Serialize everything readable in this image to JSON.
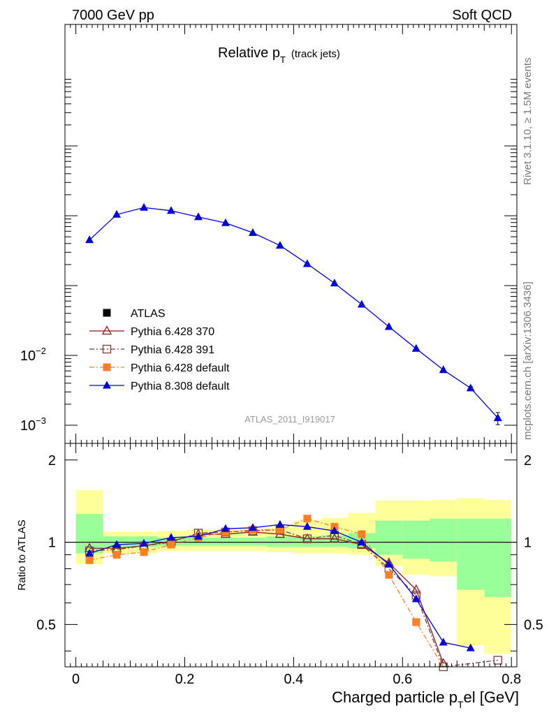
{
  "header": {
    "left": "7000 GeV pp",
    "right": "Soft QCD"
  },
  "side_labels": {
    "rivet": "Rivet 3.1.10, ≥ 1.5M events",
    "source": "mcplots.cern.ch [arXiv:1306.3436]"
  },
  "main": {
    "title_main": "Relative p",
    "title_sub": "T",
    "title_extra": "(track jets)",
    "analysis_id": "ATLAS_2011_I919017",
    "y_ticks": [
      {
        "value": 0.01,
        "label": "10",
        "exp": "−2"
      },
      {
        "value": 0.001,
        "label": "10",
        "exp": "−3"
      }
    ],
    "y_scale": "log"
  },
  "ratio": {
    "ylabel": "Ratio to ATLAS",
    "y_ticks": [
      {
        "value": 0.5,
        "label": "0.5"
      },
      {
        "value": 1,
        "label": "1"
      },
      {
        "value": 2,
        "label": "2"
      }
    ],
    "ylim": [
      0.35,
      2.3
    ],
    "y_scale": "log"
  },
  "x_axis": {
    "label_pre": "Charged particle p",
    "label_sub": "T",
    "label_post": "el [GeV]",
    "xlim": [
      -0.02,
      0.81
    ],
    "ticks": [
      {
        "value": 0,
        "label": "0"
      },
      {
        "value": 0.2,
        "label": "0.2"
      },
      {
        "value": 0.4,
        "label": "0.4"
      },
      {
        "value": 0.6,
        "label": "0.6"
      },
      {
        "value": 0.8,
        "label": "0.8"
      }
    ]
  },
  "legend": {
    "placement": "bottom-left",
    "entries": [
      {
        "label": "ATLAS",
        "color": "#000000",
        "marker": "square-filled",
        "line": "none"
      },
      {
        "label": "Pythia 6.428 370",
        "color": "#8b1a1a",
        "marker": "triangle-open",
        "line": "solid"
      },
      {
        "label": "Pythia 6.428 391",
        "color": "#7a3b3b",
        "marker": "square-open",
        "line": "dashdot"
      },
      {
        "label": "Pythia 6.428 default",
        "color": "#ff7f27",
        "marker": "square-filled",
        "line": "dashdot"
      },
      {
        "label": "Pythia 8.308 default",
        "color": "#0000dd",
        "marker": "triangle-filled",
        "line": "solid"
      }
    ]
  },
  "chart_data": {
    "type": "line",
    "x_bin_centers": [
      0.025,
      0.075,
      0.125,
      0.175,
      0.225,
      0.275,
      0.325,
      0.375,
      0.425,
      0.475,
      0.525,
      0.575,
      0.625,
      0.675,
      0.725,
      0.775
    ],
    "x_bin_edges": [
      0,
      0.05,
      0.1,
      0.15,
      0.2,
      0.25,
      0.3,
      0.35,
      0.4,
      0.45,
      0.5,
      0.55,
      0.6,
      0.65,
      0.7,
      0.75,
      0.8
    ],
    "main_series": [
      {
        "name": "Pythia 8.308 default",
        "values": [
          0.45,
          1.04,
          1.31,
          1.18,
          0.96,
          0.79,
          0.57,
          0.375,
          0.205,
          0.108,
          0.0537,
          0.0257,
          0.0125,
          0.0062,
          0.0034,
          0.00127
        ],
        "errors": [
          0,
          0,
          0,
          0,
          0,
          0,
          0,
          0,
          0,
          0,
          0,
          0,
          0,
          0,
          0.0002,
          0.00025
        ]
      }
    ],
    "ratio_bands": {
      "green": [
        [
          0.91,
          1.27
        ],
        [
          0.96,
          1.05
        ],
        [
          0.96,
          1.05
        ],
        [
          0.97,
          1.04
        ],
        [
          0.97,
          1.04
        ],
        [
          0.97,
          1.04
        ],
        [
          0.97,
          1.04
        ],
        [
          0.96,
          1.05
        ],
        [
          0.96,
          1.05
        ],
        [
          0.96,
          1.06
        ],
        [
          0.95,
          1.08
        ],
        [
          0.9,
          1.2
        ],
        [
          0.87,
          1.2
        ],
        [
          0.85,
          1.22
        ],
        [
          0.67,
          1.22
        ],
        [
          0.63,
          1.22
        ]
      ],
      "yellow": [
        [
          0.83,
          1.55
        ],
        [
          0.91,
          1.09
        ],
        [
          0.91,
          1.09
        ],
        [
          0.93,
          1.1
        ],
        [
          0.93,
          1.11
        ],
        [
          0.93,
          1.11
        ],
        [
          0.93,
          1.12
        ],
        [
          0.92,
          1.13
        ],
        [
          0.91,
          1.2
        ],
        [
          0.91,
          1.23
        ],
        [
          0.9,
          1.28
        ],
        [
          0.82,
          1.42
        ],
        [
          0.76,
          1.42
        ],
        [
          0.75,
          1.43
        ],
        [
          0.42,
          1.45
        ],
        [
          0.39,
          1.43
        ]
      ]
    },
    "ratio_series": [
      {
        "name": "Pythia 6.428 370",
        "values": [
          0.95,
          0.95,
          0.97,
          1.01,
          1.07,
          1.07,
          1.09,
          1.07,
          1.03,
          1.03,
          0.98,
          0.84,
          0.67,
          0.36,
          null,
          null
        ]
      },
      {
        "name": "Pythia 6.428 391",
        "values": [
          0.93,
          0.94,
          0.97,
          1.0,
          1.08,
          1.09,
          1.1,
          1.11,
          1.03,
          1.06,
          0.98,
          0.8,
          0.64,
          0.35,
          null,
          0.37
        ]
      },
      {
        "name": "Pythia 6.428 default",
        "values": [
          0.86,
          0.9,
          0.92,
          0.98,
          1.04,
          1.09,
          1.11,
          1.11,
          1.22,
          1.14,
          1.07,
          0.76,
          0.51,
          0.33,
          null,
          null
        ]
      },
      {
        "name": "Pythia 8.308 default",
        "values": [
          0.91,
          0.98,
          0.99,
          1.04,
          1.05,
          1.12,
          1.13,
          1.16,
          1.14,
          1.1,
          1.0,
          0.83,
          0.62,
          0.43,
          0.41,
          null
        ]
      }
    ]
  }
}
